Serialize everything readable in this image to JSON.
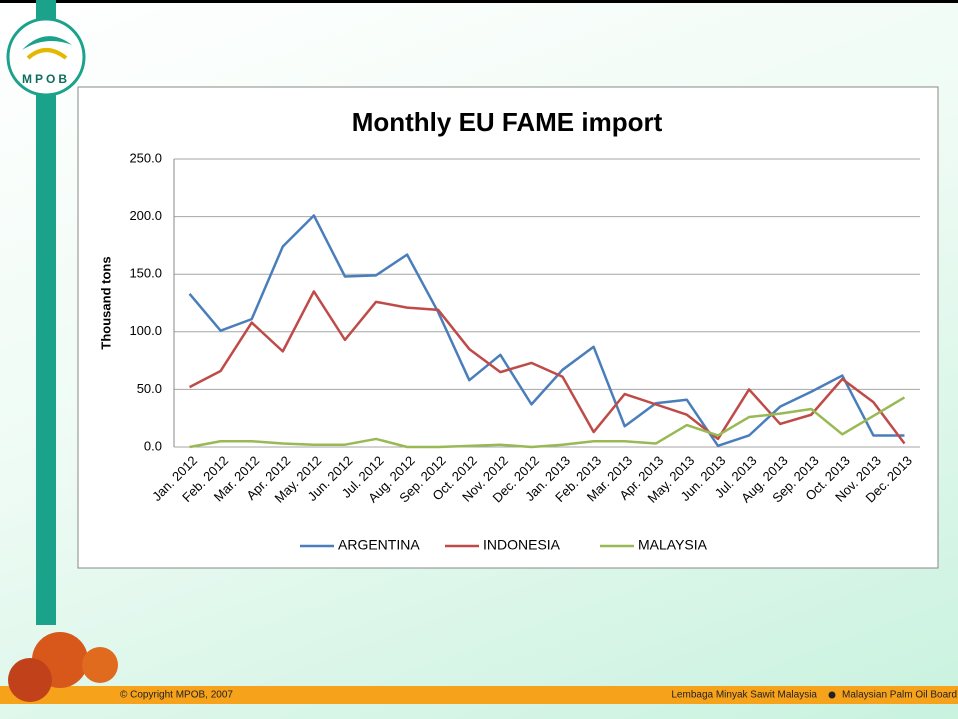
{
  "slide": {
    "logo": "MPOB",
    "copyright": "© Copyright MPOB, 2007",
    "footer_left": "Lembaga Minyak Sawit Malaysia",
    "footer_right": "Malaysian Palm Oil Board"
  },
  "chart_data": {
    "type": "line",
    "title": "Monthly EU FAME import",
    "y_label": "Thousand tons",
    "categories": [
      "Jan. 2012",
      "Feb. 2012",
      "Mar. 2012",
      "Apr. 2012",
      "May. 2012",
      "Jun. 2012",
      "Jul. 2012",
      "Aug. 2012",
      "Sep. 2012",
      "Oct. 2012",
      "Nov. 2012",
      "Dec. 2012",
      "Jan. 2013",
      "Feb. 2013",
      "Mar. 2013",
      "Apr. 2013",
      "May. 2013",
      "Jun. 2013",
      "Jul. 2013",
      "Aug. 2013",
      "Sep. 2013",
      "Oct. 2013",
      "Nov. 2013",
      "Dec. 2013"
    ],
    "series": [
      {
        "name": "ARGENTINA",
        "color": "#4a7ebb",
        "values": [
          133,
          101,
          111,
          174,
          201,
          148,
          149,
          167,
          117,
          58,
          80,
          37,
          67,
          87,
          18,
          38,
          41,
          1,
          10,
          35,
          48,
          62,
          10,
          10
        ]
      },
      {
        "name": "INDONESIA",
        "color": "#be4b48",
        "values": [
          52,
          66,
          108,
          83,
          135,
          93,
          126,
          121,
          119,
          85,
          65,
          73,
          61,
          13,
          46,
          37,
          28,
          7,
          50,
          20,
          28,
          59,
          39,
          3
        ]
      },
      {
        "name": "MALAYSIA",
        "color": "#98b954",
        "values": [
          0,
          5,
          5,
          3,
          2,
          2,
          7,
          0,
          0,
          1,
          2,
          0,
          2,
          5,
          5,
          3,
          19,
          10,
          26,
          29,
          33,
          11,
          27,
          43
        ]
      }
    ],
    "ylim": [
      0,
      250
    ],
    "yticks": [
      {
        "value": 0,
        "label": "0.0"
      },
      {
        "value": 50,
        "label": "50.0"
      },
      {
        "value": 100,
        "label": "100.0"
      },
      {
        "value": 150,
        "label": "150.0"
      },
      {
        "value": 200,
        "label": "200.0"
      },
      {
        "value": 250,
        "label": "250.0"
      }
    ],
    "grid": true,
    "legend": "bottom"
  }
}
